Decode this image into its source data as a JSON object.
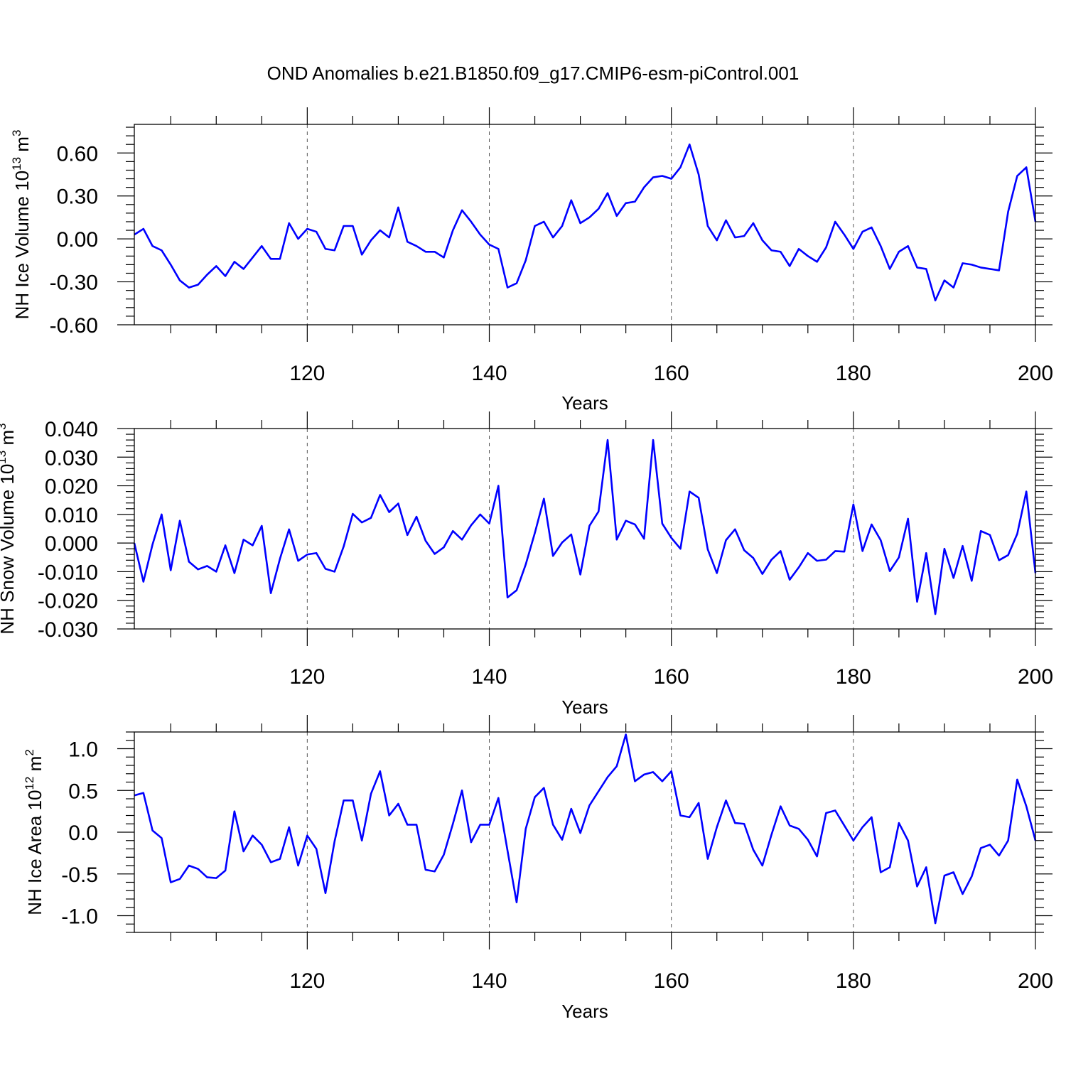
{
  "title": "OND Anomalies b.e21.B1850.f09_g17.CMIP6-esm-piControl.001",
  "line_color": "#0000ff",
  "chart_data": [
    {
      "type": "line",
      "name": "nh-ice-volume",
      "title": "OND Anomalies b.e21.B1850.f09_g17.CMIP6-esm-piControl.001",
      "xlabel": "Years",
      "ylabel": {
        "base": "NH Ice Volume 10",
        "exp": "13",
        "unit": " m",
        "unit_exp": "3"
      },
      "xlim": [
        101,
        200
      ],
      "ylim": [
        -0.6,
        0.8
      ],
      "yticks": [
        -0.6,
        -0.3,
        0.0,
        0.3,
        0.6
      ],
      "ytick_labels": [
        "-0.60",
        "-0.30",
        "0.00",
        "0.30",
        "0.60"
      ],
      "xticks": [
        120,
        140,
        160,
        180,
        200
      ],
      "xtick_labels": [
        "120",
        "140",
        "160",
        "180",
        "200"
      ],
      "x_start": 101,
      "values": [
        0.03,
        0.07,
        -0.05,
        -0.08,
        -0.18,
        -0.29,
        -0.34,
        -0.32,
        -0.25,
        -0.19,
        -0.26,
        -0.16,
        -0.21,
        -0.13,
        -0.05,
        -0.14,
        -0.14,
        0.11,
        0.0,
        0.07,
        0.05,
        -0.07,
        -0.08,
        0.09,
        0.09,
        -0.11,
        -0.01,
        0.06,
        0.01,
        0.22,
        -0.02,
        -0.05,
        -0.09,
        -0.09,
        -0.13,
        0.06,
        0.2,
        0.12,
        0.03,
        -0.04,
        -0.07,
        -0.34,
        -0.31,
        -0.15,
        0.09,
        0.12,
        0.01,
        0.09,
        0.27,
        0.11,
        0.15,
        0.21,
        0.32,
        0.16,
        0.25,
        0.26,
        0.36,
        0.43,
        0.44,
        0.42,
        0.5,
        0.66,
        0.45,
        0.09,
        -0.01,
        0.13,
        0.01,
        0.02,
        0.11,
        -0.01,
        -0.08,
        -0.09,
        -0.19,
        -0.07,
        -0.12,
        -0.16,
        -0.06,
        0.12,
        0.03,
        -0.07,
        0.05,
        0.08,
        -0.05,
        -0.21,
        -0.09,
        -0.05,
        -0.2,
        -0.21,
        -0.43,
        -0.29,
        -0.34,
        -0.17,
        -0.18,
        -0.2,
        -0.21,
        -0.22,
        0.19,
        0.44,
        0.5,
        0.12
      ]
    },
    {
      "type": "line",
      "name": "nh-snow-volume",
      "xlabel": "Years",
      "ylabel": {
        "base": "NH Snow Volume 10",
        "exp": "13",
        "unit": " m",
        "unit_exp": "3"
      },
      "xlim": [
        101,
        200
      ],
      "ylim": [
        -0.03,
        0.04
      ],
      "yticks": [
        -0.03,
        -0.02,
        -0.01,
        0.0,
        0.01,
        0.02,
        0.03,
        0.04
      ],
      "ytick_labels": [
        "-0.030",
        "-0.020",
        "-0.010",
        "0.000",
        "0.010",
        "0.020",
        "0.030",
        "0.040"
      ],
      "xticks": [
        120,
        140,
        160,
        180,
        200
      ],
      "xtick_labels": [
        "120",
        "140",
        "160",
        "180",
        "200"
      ],
      "x_start": 101,
      "values": [
        0.0,
        -0.0135,
        -0.0005,
        0.01,
        -0.0095,
        0.0078,
        -0.0065,
        -0.0092,
        -0.008,
        -0.01,
        -0.0008,
        -0.0105,
        0.0012,
        -0.0008,
        0.006,
        -0.0175,
        -0.0055,
        0.0048,
        -0.0062,
        -0.004,
        -0.0035,
        -0.009,
        -0.01,
        -0.0012,
        0.0102,
        0.0072,
        0.0088,
        0.0168,
        0.0108,
        0.0138,
        0.0028,
        0.0092,
        0.0008,
        -0.0038,
        -0.0015,
        0.0042,
        0.0012,
        0.0062,
        0.01,
        0.0068,
        0.02,
        -0.019,
        -0.0165,
        -0.0075,
        0.0035,
        0.0155,
        -0.0045,
        0.0002,
        0.003,
        -0.011,
        0.006,
        0.011,
        0.036,
        0.0012,
        0.0078,
        0.0065,
        0.0015,
        0.036,
        0.0068,
        0.0018,
        -0.002,
        0.018,
        0.0158,
        -0.0022,
        -0.0105,
        0.001,
        0.0048,
        -0.0025,
        -0.0052,
        -0.0108,
        -0.0058,
        -0.0028,
        -0.0128,
        -0.0085,
        -0.0035,
        -0.0062,
        -0.0058,
        -0.0028,
        -0.003,
        0.0135,
        -0.0028,
        0.0065,
        0.001,
        -0.0098,
        -0.005,
        0.0085,
        -0.0205,
        -0.0035,
        -0.0248,
        -0.002,
        -0.0122,
        -0.001,
        -0.0132,
        0.0042,
        0.0028,
        -0.006,
        -0.0042,
        0.0032,
        0.018,
        -0.0105
      ]
    },
    {
      "type": "line",
      "name": "nh-ice-area",
      "xlabel": "Years",
      "ylabel": {
        "base": "NH Ice Area 10",
        "exp": "12",
        "unit": " m",
        "unit_exp": "2"
      },
      "xlim": [
        101,
        200
      ],
      "ylim": [
        -1.2,
        1.2
      ],
      "yticks": [
        -1.0,
        -0.5,
        0.0,
        0.5,
        1.0
      ],
      "ytick_labels": [
        "-1.0",
        "-0.5",
        "0.0",
        "0.5",
        "1.0"
      ],
      "xticks": [
        120,
        140,
        160,
        180,
        200
      ],
      "xtick_labels": [
        "120",
        "140",
        "160",
        "180",
        "200"
      ],
      "x_start": 101,
      "values": [
        0.44,
        0.47,
        0.02,
        -0.07,
        -0.6,
        -0.56,
        -0.4,
        -0.44,
        -0.54,
        -0.55,
        -0.46,
        0.25,
        -0.23,
        -0.04,
        -0.15,
        -0.36,
        -0.32,
        0.06,
        -0.4,
        -0.04,
        -0.2,
        -0.73,
        -0.11,
        0.38,
        0.38,
        -0.1,
        0.46,
        0.73,
        0.2,
        0.34,
        0.09,
        0.09,
        -0.45,
        -0.47,
        -0.27,
        0.1,
        0.5,
        -0.12,
        0.09,
        0.09,
        0.41,
        -0.22,
        -0.84,
        0.04,
        0.42,
        0.53,
        0.09,
        -0.09,
        0.28,
        -0.01,
        0.32,
        0.49,
        0.66,
        0.79,
        1.17,
        0.61,
        0.69,
        0.72,
        0.61,
        0.73,
        0.2,
        0.18,
        0.35,
        -0.32,
        0.06,
        0.38,
        0.11,
        0.1,
        -0.21,
        -0.4,
        -0.03,
        0.31,
        0.08,
        0.04,
        -0.09,
        -0.29,
        0.23,
        0.26,
        0.08,
        -0.1,
        0.06,
        0.18,
        -0.48,
        -0.42,
        0.11,
        -0.1,
        -0.65,
        -0.42,
        -1.09,
        -0.52,
        -0.48,
        -0.74,
        -0.53,
        -0.19,
        -0.15,
        -0.28,
        -0.1,
        0.63,
        0.31,
        -0.1
      ]
    }
  ]
}
